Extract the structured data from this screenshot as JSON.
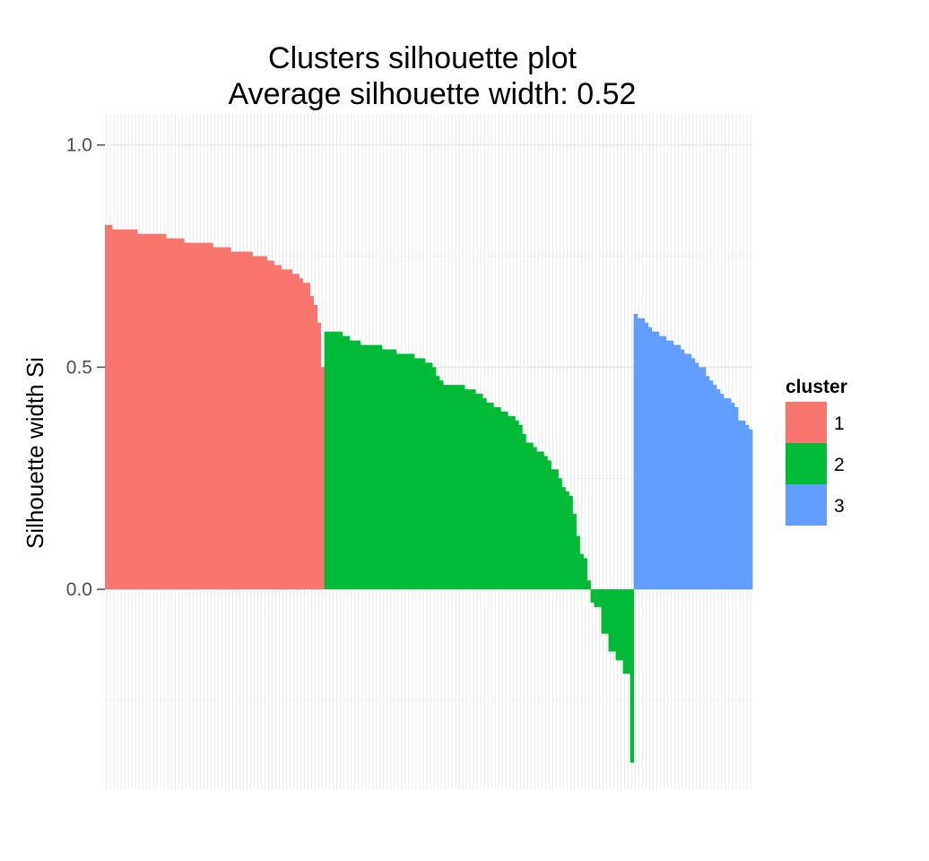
{
  "chart_data": {
    "type": "bar",
    "title": "Clusters silhouette plot",
    "subtitle": "Average silhouette width: 0.52",
    "xlabel": "",
    "ylabel": "Silhouette width Si",
    "ylim": [
      -0.45,
      1.07
    ],
    "yticks": [
      {
        "value": 0.0,
        "label": "0.0"
      },
      {
        "value": 0.5,
        "label": "0.5"
      },
      {
        "value": 1.0,
        "label": "1.0"
      }
    ],
    "grid": true,
    "legend": {
      "title": "cluster",
      "placement": "right"
    },
    "series": [
      {
        "name": "1",
        "color": "#F8766D",
        "values": [
          0.82,
          0.82,
          0.81,
          0.81,
          0.81,
          0.81,
          0.81,
          0.81,
          0.81,
          0.8,
          0.8,
          0.8,
          0.8,
          0.8,
          0.8,
          0.8,
          0.8,
          0.79,
          0.79,
          0.79,
          0.79,
          0.79,
          0.78,
          0.78,
          0.78,
          0.78,
          0.78,
          0.78,
          0.78,
          0.78,
          0.77,
          0.77,
          0.77,
          0.77,
          0.77,
          0.76,
          0.76,
          0.76,
          0.76,
          0.76,
          0.76,
          0.75,
          0.75,
          0.75,
          0.75,
          0.74,
          0.74,
          0.73,
          0.73,
          0.72,
          0.72,
          0.72,
          0.71,
          0.71,
          0.7,
          0.69,
          0.69,
          0.66,
          0.64,
          0.6,
          0.5
        ]
      },
      {
        "name": "2",
        "color": "#00BA38",
        "values": [
          0.58,
          0.58,
          0.58,
          0.58,
          0.58,
          0.57,
          0.57,
          0.56,
          0.56,
          0.56,
          0.55,
          0.55,
          0.55,
          0.55,
          0.55,
          0.55,
          0.54,
          0.54,
          0.54,
          0.54,
          0.53,
          0.53,
          0.53,
          0.53,
          0.53,
          0.52,
          0.52,
          0.52,
          0.51,
          0.51,
          0.5,
          0.48,
          0.47,
          0.46,
          0.46,
          0.46,
          0.46,
          0.46,
          0.46,
          0.45,
          0.45,
          0.45,
          0.44,
          0.44,
          0.43,
          0.42,
          0.42,
          0.41,
          0.41,
          0.4,
          0.4,
          0.39,
          0.39,
          0.38,
          0.37,
          0.35,
          0.33,
          0.33,
          0.32,
          0.31,
          0.31,
          0.3,
          0.29,
          0.27,
          0.27,
          0.25,
          0.23,
          0.22,
          0.21,
          0.17,
          0.12,
          0.08,
          0.07,
          0.02,
          -0.03,
          -0.04,
          -0.04,
          -0.1,
          -0.1,
          -0.14,
          -0.14,
          -0.16,
          -0.16,
          -0.19,
          -0.19,
          -0.39
        ]
      },
      {
        "name": "3",
        "color": "#619CFF",
        "values": [
          0.62,
          0.61,
          0.61,
          0.6,
          0.59,
          0.58,
          0.58,
          0.57,
          0.57,
          0.56,
          0.56,
          0.55,
          0.55,
          0.54,
          0.53,
          0.53,
          0.52,
          0.51,
          0.5,
          0.5,
          0.48,
          0.47,
          0.46,
          0.45,
          0.44,
          0.43,
          0.43,
          0.42,
          0.41,
          0.38,
          0.38,
          0.37,
          0.36
        ]
      }
    ]
  }
}
